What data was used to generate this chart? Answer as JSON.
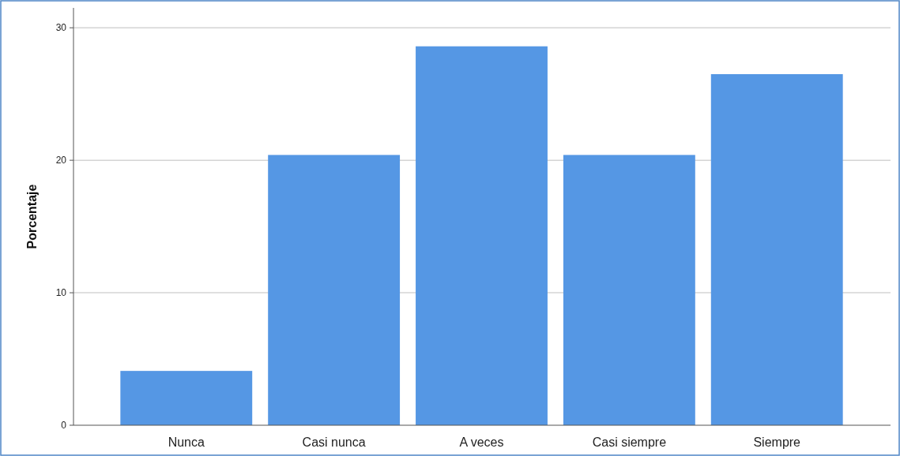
{
  "chart_data": {
    "type": "bar",
    "ylabel": "Porcentaje",
    "categories": [
      "Nunca",
      "Casi nunca",
      "A veces",
      "Casi siempre",
      "Siempre"
    ],
    "values": [
      4.1,
      20.4,
      28.6,
      20.4,
      26.5
    ],
    "color": "#5597e4",
    "ylim": [
      0,
      31.5
    ],
    "yticks": [
      0,
      10,
      20,
      30
    ],
    "grid": "y"
  }
}
